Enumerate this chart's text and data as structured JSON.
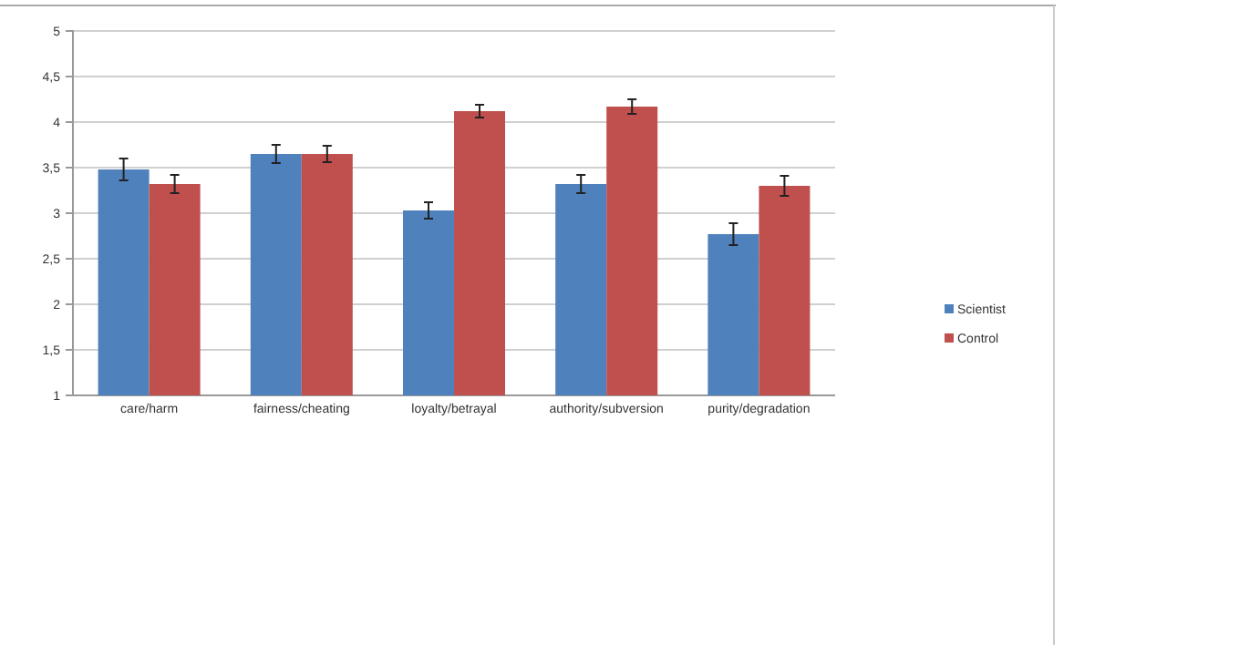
{
  "chart_data": {
    "type": "bar",
    "categories": [
      "care/harm",
      "fairness/cheating",
      "loyalty/betrayal",
      "authority/subversion",
      "purity/degradation"
    ],
    "series": [
      {
        "name": "Scientist",
        "color": "#4f81bd",
        "values": [
          3.48,
          3.65,
          3.03,
          3.32,
          2.77
        ],
        "errors": [
          0.12,
          0.1,
          0.09,
          0.1,
          0.12
        ]
      },
      {
        "name": "Control",
        "color": "#c0504d",
        "values": [
          3.32,
          3.65,
          4.12,
          4.17,
          3.3
        ],
        "errors": [
          0.1,
          0.09,
          0.07,
          0.08,
          0.11
        ]
      }
    ],
    "ylim": [
      1,
      5
    ],
    "yticks": [
      1,
      {
        "value": 1.5,
        "label": "1,5"
      },
      2,
      {
        "value": 2.5,
        "label": "2,5"
      },
      3,
      {
        "value": 3.5,
        "label": "3,5"
      },
      4,
      {
        "value": 4.5,
        "label": "4,5"
      },
      5
    ],
    "grid": "y",
    "legend": "right"
  }
}
